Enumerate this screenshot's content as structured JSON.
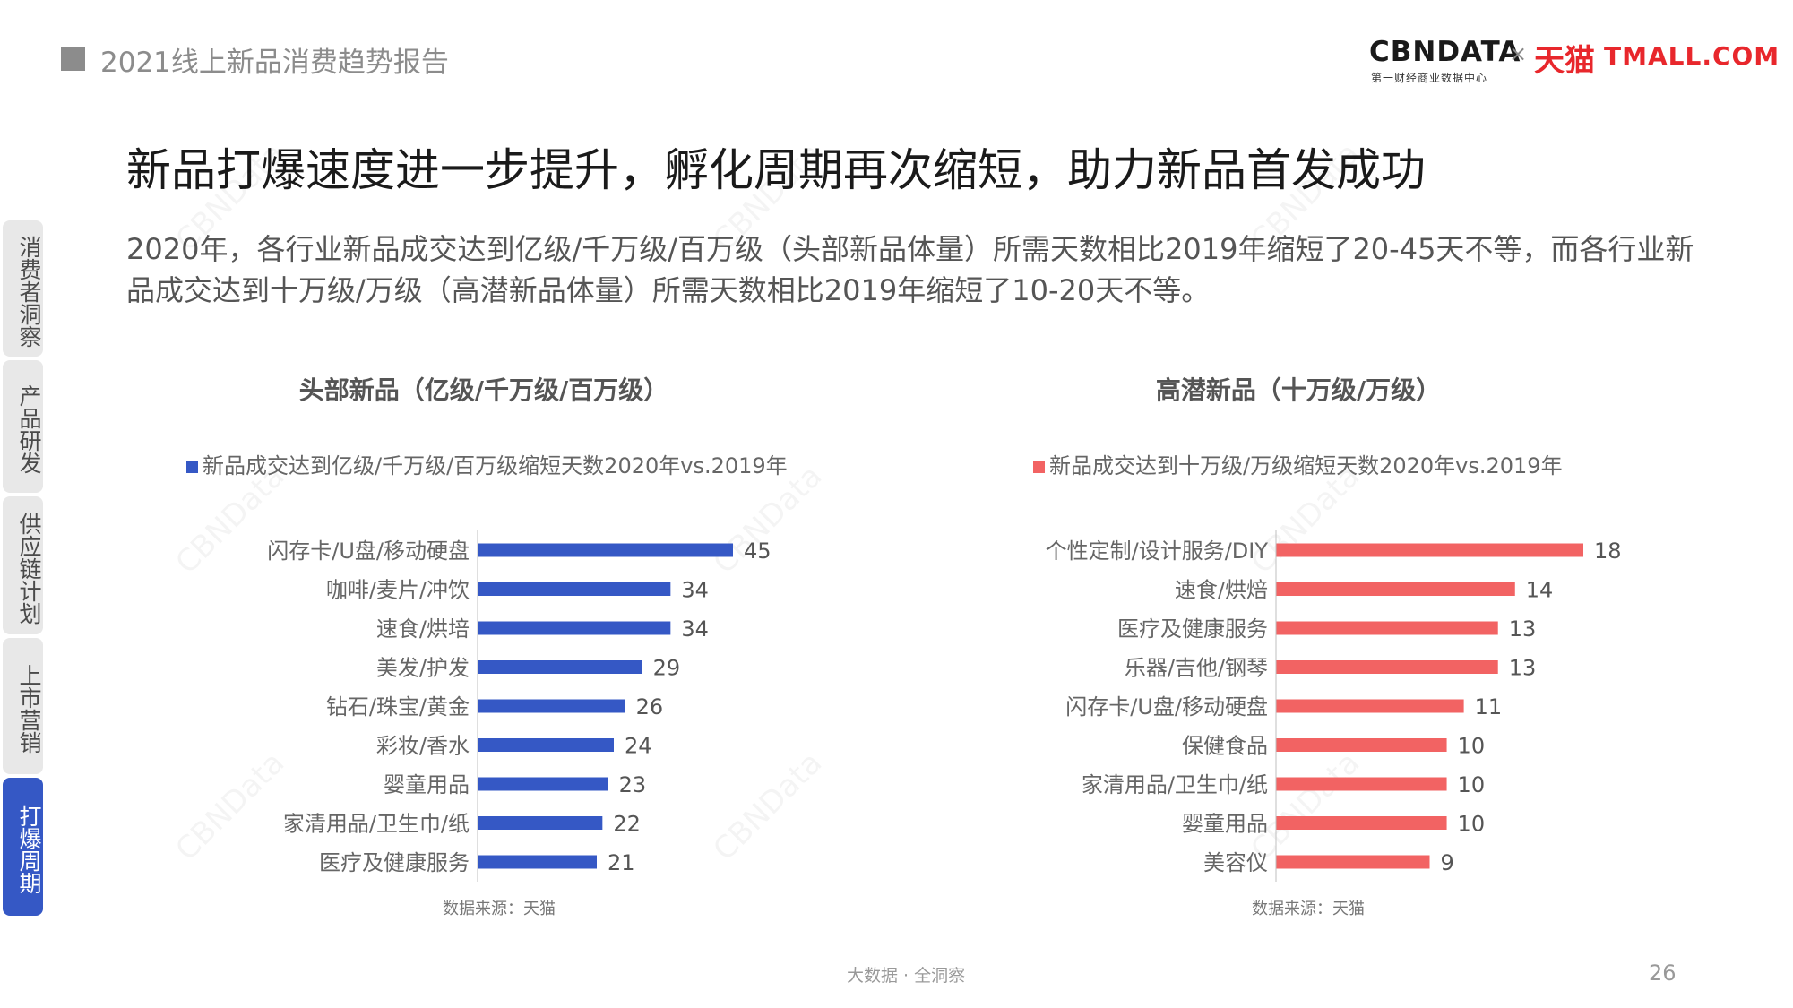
{
  "header": {
    "title": "2021线上新品消费趋势报告"
  },
  "logo": {
    "cbndata": "CBNDATA",
    "cbndata_sub": "第一财经商业数据中心",
    "separator": "×",
    "tmall_cn": "天猫",
    "tmall_en": "TMALL.COM"
  },
  "sidebar": {
    "items": [
      {
        "label": "消费者洞察"
      },
      {
        "label": "产品研发"
      },
      {
        "label": "供应链计划"
      },
      {
        "label": "上市营销"
      },
      {
        "label": "打爆周期"
      }
    ]
  },
  "title": "新品打爆速度进一步提升，孵化周期再次缩短，助力新品首发成功",
  "description": "2020年，各行业新品成交达到亿级/千万级/百万级（头部新品体量）所需天数相比2019年缩短了20-45天不等，而各行业新品成交达到十万级/万级（高潜新品体量）所需天数相比2019年缩短了10-20天不等。",
  "colors": {
    "accent_blue": "#3558c5",
    "accent_red": "#f26363",
    "sidebar_active": "#3558c5"
  },
  "chart_data": [
    {
      "type": "bar",
      "orientation": "horizontal",
      "title": "头部新品（亿级/千万级/百万级）",
      "series": [
        {
          "name": "新品成交达到亿级/千万级/百万级缩短天数2020年vs.2019年",
          "color": "#3558c5",
          "values": [
            45,
            34,
            34,
            29,
            26,
            24,
            23,
            22,
            21
          ]
        }
      ],
      "categories": [
        "闪存卡/U盘/移动硬盘",
        "咖啡/麦片/冲饮",
        "速食/烘培",
        "美发/护发",
        "钻石/珠宝/黄金",
        "彩妆/香水",
        "婴童用品",
        "家清用品/卫生巾/纸",
        "医疗及健康服务"
      ],
      "source": "数据来源：天猫",
      "legend_position": "top",
      "grid": false
    },
    {
      "type": "bar",
      "orientation": "horizontal",
      "title": "高潜新品（十万级/万级）",
      "series": [
        {
          "name": "新品成交达到十万级/万级缩短天数2020年vs.2019年",
          "color": "#f26363",
          "values": [
            18,
            14,
            13,
            13,
            11,
            10,
            10,
            10,
            9
          ]
        }
      ],
      "categories": [
        "个性定制/设计服务/DIY",
        "速食/烘焙",
        "医疗及健康服务",
        "乐器/吉他/钢琴",
        "闪存卡/U盘/移动硬盘",
        "保健食品",
        "家清用品/卫生巾/纸",
        "婴童用品",
        "美容仪"
      ],
      "source": "数据来源：天猫",
      "legend_position": "top",
      "grid": false
    }
  ],
  "footer": {
    "center": "大数据 · 全洞察",
    "page_number": "26"
  },
  "watermark": "CBNData"
}
